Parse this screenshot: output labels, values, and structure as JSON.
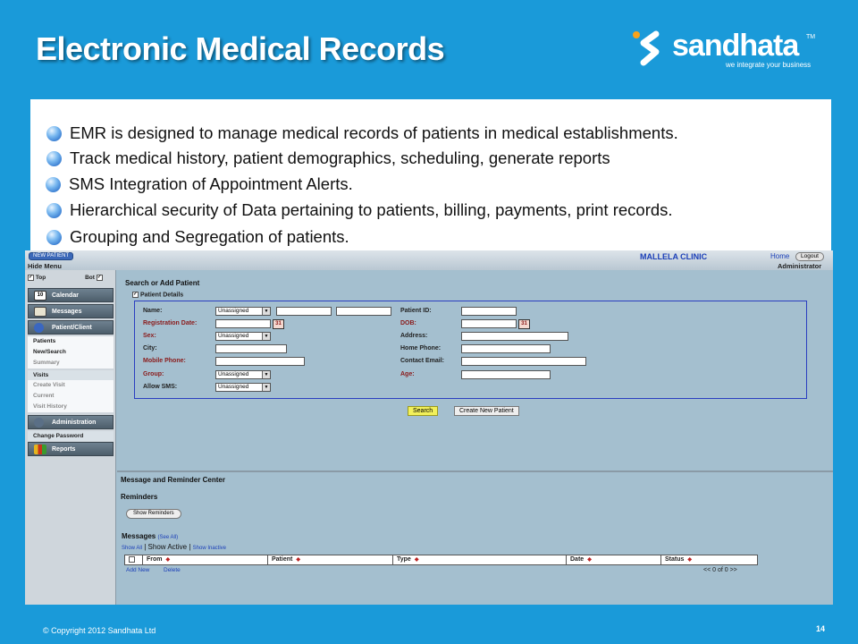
{
  "slide": {
    "title": "Electronic Medical Records",
    "logo_word": "sandhata",
    "logo_tm": "TM",
    "logo_tagline": "we integrate your business",
    "bullets": [
      "EMR is designed to manage medical records of patients in medical establishments.",
      "Track medical history, patient demographics, scheduling, generate reports",
      "SMS Integration of Appointment Alerts.",
      "Hierarchical security of Data pertaining to patients, billing, payments, print records.",
      "Grouping and Segregation of patients."
    ],
    "footer_copyright": "© Copyright  2012 Sandhata Ltd",
    "page_number": "14"
  },
  "app": {
    "topbar": {
      "new_patient": "NEW PATIENT",
      "hide_menu": "Hide Menu",
      "clinic": "MALLELA CLINIC",
      "home": "Home",
      "logout": "Logout",
      "user": "Administrator"
    },
    "sidebar": {
      "top": "Top",
      "bot": "Bot",
      "calendar": "Calendar",
      "calendar_day": "10",
      "messages": "Messages",
      "patient_client": "Patient/Client",
      "patients": "Patients",
      "new_search": "New/Search",
      "summary": "Summary",
      "visits": "Visits",
      "create_visit": "Create Visit",
      "current": "Current",
      "visit_history": "Visit History",
      "administration": "Administration",
      "change_password": "Change Password",
      "reports": "Reports"
    },
    "search": {
      "title": "Search or Add Patient",
      "patient_details": "Patient Details",
      "labels": {
        "name": "Name:",
        "reg_date": "Registration Date:",
        "sex": "Sex:",
        "city": "City:",
        "mobile": "Mobile Phone:",
        "group": "Group:",
        "allow_sms": "Allow SMS:",
        "patient_id": "Patient ID:",
        "dob": "DOB:",
        "address": "Address:",
        "home_phone": "Home Phone:",
        "contact_email": "Contact Email:",
        "age": "Age:"
      },
      "unassigned": "Unassigned",
      "cal_glyph": "31",
      "search_btn": "Search",
      "create_btn": "Create New Patient"
    },
    "messages": {
      "center_title": "Message and Reminder Center",
      "reminders": "Reminders",
      "show_reminders": "Show Reminders",
      "messages_title": "Messages",
      "see_all": "(See All)",
      "show_all": "Show All",
      "show_active": "Show Active",
      "show_inactive": "Show Inactive",
      "columns": [
        "From",
        "Patient",
        "Type",
        "Date",
        "Status"
      ],
      "add_new": "Add New",
      "delete": "Delete",
      "pager": "<<   0 of 0   >>"
    }
  }
}
